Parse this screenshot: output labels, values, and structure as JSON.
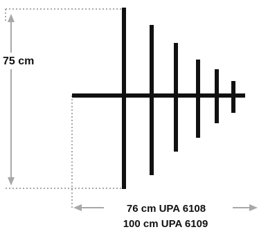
{
  "diagram": {
    "height_label": "75 cm",
    "width_labels": [
      "76 cm UPA 6108",
      "100 cm UPA 6109"
    ],
    "colors": {
      "antenna": "#111111",
      "dimension_line": "#a8a8a8",
      "text": "#111111",
      "background": "#ffffff"
    }
  }
}
